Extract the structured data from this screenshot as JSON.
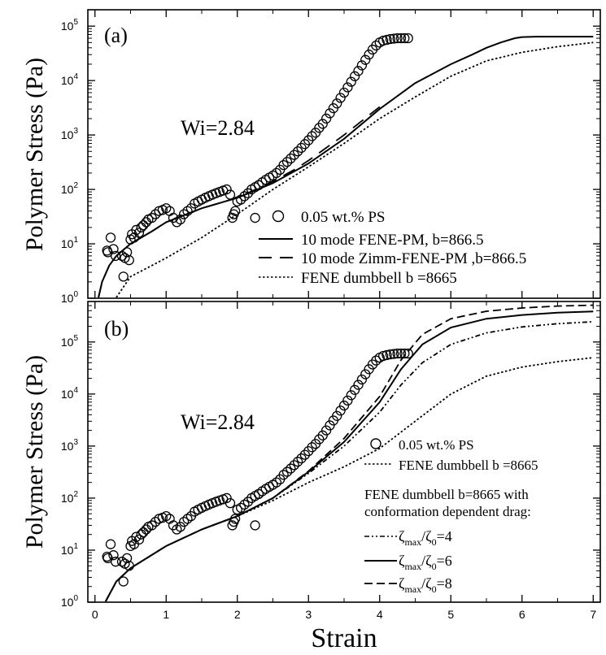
{
  "figure": {
    "ylabel": "Polymer Stress (Pa)",
    "xlabel": "Strain",
    "xticks": [
      "0",
      "1",
      "2",
      "3",
      "4",
      "5",
      "6",
      "7"
    ]
  },
  "chart_data": [
    {
      "type": "line",
      "panel_label": "(a)",
      "annotation": "Wi=2.84",
      "xlim": [
        -0.1,
        7.1
      ],
      "ylim": [
        1,
        200000
      ],
      "y_scale": "log",
      "yticks": [
        1,
        10,
        100,
        1000,
        10000,
        100000
      ],
      "ytick_labels": {
        "base": "10",
        "exps": [
          "0",
          "1",
          "2",
          "3",
          "4",
          "5"
        ]
      },
      "legend_position": "bottom-right",
      "series": [
        {
          "name": "0.05 wt.% PS",
          "kind": "markers",
          "marker": "open-circle",
          "x": [
            0.18,
            0.22,
            0.17,
            0.26,
            0.29,
            0.38,
            0.42,
            0.45,
            0.48,
            0.5,
            0.52,
            0.55,
            0.58,
            0.62,
            0.65,
            0.68,
            0.72,
            0.75,
            0.8,
            0.85,
            0.9,
            0.95,
            1.0,
            1.05,
            1.1,
            1.15,
            1.2,
            1.25,
            1.3,
            1.35,
            1.4,
            1.45,
            1.5,
            1.55,
            1.6,
            1.65,
            1.7,
            1.75,
            1.8,
            1.85,
            1.9,
            1.95,
            2.0,
            2.05,
            2.1,
            2.15,
            2.2,
            2.25,
            2.3,
            2.35,
            2.4,
            2.45,
            2.5,
            2.55,
            2.6,
            2.65,
            2.7,
            2.75,
            2.8,
            2.85,
            2.9,
            2.95,
            3.0,
            3.05,
            3.1,
            3.15,
            3.2,
            3.25,
            3.3,
            3.35,
            3.4,
            3.45,
            3.5,
            3.55,
            3.6,
            3.65,
            3.7,
            3.75,
            3.8,
            3.85,
            3.9,
            3.95,
            4.0,
            4.05,
            4.1,
            4.15,
            4.2,
            4.25,
            4.3,
            4.35,
            4.4,
            1.93,
            1.97,
            2.3,
            2.25,
            0.4
          ],
          "y": [
            7,
            13,
            7.5,
            8,
            6,
            6,
            5.5,
            7,
            5,
            12,
            15,
            13,
            18,
            16,
            20,
            22,
            25,
            28,
            30,
            35,
            40,
            42,
            45,
            40,
            30,
            25,
            28,
            35,
            40,
            45,
            55,
            60,
            65,
            70,
            75,
            80,
            85,
            90,
            95,
            100,
            80,
            35,
            60,
            65,
            75,
            85,
            100,
            110,
            120,
            135,
            150,
            165,
            180,
            200,
            230,
            280,
            320,
            370,
            430,
            500,
            580,
            680,
            800,
            950,
            1100,
            1350,
            1600,
            2000,
            2500,
            3100,
            3800,
            4800,
            6000,
            7500,
            9500,
            12000,
            15000,
            19000,
            24000,
            30000,
            37000,
            44000,
            50000,
            54000,
            56000,
            58000,
            59000,
            60000,
            60000,
            60000,
            60000,
            30,
            40,
            120,
            30,
            2.5
          ]
        },
        {
          "name": "10 mode FENE-PM, b=866.5",
          "kind": "line",
          "dash": "solid",
          "x": [
            0.05,
            0.1,
            0.2,
            0.3,
            0.5,
            0.8,
            1.0,
            1.5,
            2.0,
            2.5,
            3.0,
            3.5,
            4.0,
            4.5,
            5.0,
            5.3,
            5.5,
            5.7,
            5.9,
            6.0,
            6.2,
            6.5,
            7.0
          ],
          "y": [
            1,
            2,
            4,
            6,
            10,
            17,
            25,
            45,
            70,
            130,
            300,
            850,
            3000,
            9000,
            20000,
            30000,
            40000,
            50000,
            60000,
            63000,
            64000,
            64000,
            64000
          ]
        },
        {
          "name": "10 mode Zimm-FENE-PM ,b=866.5",
          "kind": "line",
          "dash": "long-dash",
          "x": [
            0.05,
            0.1,
            0.2,
            0.3,
            0.5,
            0.8,
            1.0,
            1.5,
            2.0,
            2.5,
            2.8,
            3.0,
            3.5,
            4.0
          ],
          "y": [
            1,
            2,
            4,
            6,
            10,
            17,
            25,
            45,
            70,
            140,
            230,
            340,
            1000,
            3300
          ]
        },
        {
          "name": "FENE dumbbell b =8665",
          "kind": "line",
          "dash": "dotted",
          "x": [
            0.3,
            0.5,
            0.8,
            1.0,
            1.5,
            2.0,
            2.5,
            3.0,
            3.5,
            4.0,
            4.5,
            5.0,
            5.5,
            6.0,
            6.5,
            7.0
          ],
          "y": [
            1,
            2.5,
            4,
            5.5,
            13,
            35,
            100,
            260,
            700,
            2000,
            5000,
            12000,
            23000,
            33000,
            42000,
            50000
          ]
        }
      ]
    },
    {
      "type": "line",
      "panel_label": "(b)",
      "annotation": "Wi=2.84",
      "xlim": [
        -0.1,
        7.1
      ],
      "ylim": [
        1,
        600000
      ],
      "y_scale": "log",
      "yticks": [
        1,
        10,
        100,
        1000,
        10000,
        100000
      ],
      "ytick_labels": {
        "base": "10",
        "exps": [
          "0",
          "1",
          "2",
          "3",
          "4",
          "5"
        ]
      },
      "legend_position": "right",
      "legend_note": [
        "FENE dumbbell b=8665 with",
        "conformation dependent drag:"
      ],
      "series": [
        {
          "name": "0.05 wt.% PS",
          "kind": "markers",
          "marker": "open-circle",
          "x": [
            0.18,
            0.22,
            0.17,
            0.26,
            0.29,
            0.38,
            0.42,
            0.45,
            0.48,
            0.5,
            0.52,
            0.55,
            0.58,
            0.62,
            0.65,
            0.68,
            0.72,
            0.75,
            0.8,
            0.85,
            0.9,
            0.95,
            1.0,
            1.05,
            1.1,
            1.15,
            1.2,
            1.25,
            1.3,
            1.35,
            1.4,
            1.45,
            1.5,
            1.55,
            1.6,
            1.65,
            1.7,
            1.75,
            1.8,
            1.85,
            1.9,
            1.95,
            2.0,
            2.05,
            2.1,
            2.15,
            2.2,
            2.25,
            2.3,
            2.35,
            2.4,
            2.45,
            2.5,
            2.55,
            2.6,
            2.65,
            2.7,
            2.75,
            2.8,
            2.85,
            2.9,
            2.95,
            3.0,
            3.05,
            3.1,
            3.15,
            3.2,
            3.25,
            3.3,
            3.35,
            3.4,
            3.45,
            3.5,
            3.55,
            3.6,
            3.65,
            3.7,
            3.75,
            3.8,
            3.85,
            3.9,
            3.95,
            4.0,
            4.05,
            4.1,
            4.15,
            4.2,
            4.25,
            4.3,
            4.35,
            4.4,
            1.93,
            1.97,
            2.3,
            2.25,
            0.4
          ],
          "y": [
            7,
            13,
            7.5,
            8,
            6,
            6,
            5.5,
            7,
            5,
            12,
            15,
            13,
            18,
            16,
            20,
            22,
            25,
            28,
            30,
            35,
            40,
            42,
            45,
            40,
            30,
            25,
            28,
            35,
            40,
            45,
            55,
            60,
            65,
            70,
            75,
            80,
            85,
            90,
            95,
            100,
            80,
            35,
            60,
            65,
            75,
            85,
            100,
            110,
            120,
            135,
            150,
            165,
            180,
            200,
            230,
            280,
            320,
            370,
            430,
            500,
            580,
            680,
            800,
            950,
            1100,
            1350,
            1600,
            2000,
            2500,
            3100,
            3800,
            4800,
            6000,
            7500,
            9500,
            12000,
            15000,
            19000,
            24000,
            30000,
            37000,
            44000,
            50000,
            54000,
            56000,
            58000,
            59000,
            60000,
            60000,
            60000,
            60000,
            30,
            40,
            120,
            30,
            2.5
          ]
        },
        {
          "name": "FENE dumbbell b =8665",
          "kind": "line",
          "dash": "dotted",
          "x": [
            0.15,
            0.3,
            0.5,
            1.0,
            1.5,
            2.0,
            2.5,
            3.0,
            3.5,
            4.0,
            4.5,
            5.0,
            5.5,
            6.0,
            6.5,
            7.0
          ],
          "y": [
            1,
            2.5,
            4.5,
            12,
            25,
            45,
            90,
            200,
            400,
            900,
            3000,
            10000,
            22000,
            33000,
            42000,
            50000
          ]
        },
        {
          "name": "ζmax/ζ0=4",
          "kind": "line",
          "dash": "dash-dot-dot",
          "x": [
            0.15,
            0.3,
            0.5,
            1.0,
            1.5,
            2.0,
            2.5,
            3.0,
            3.5,
            4.0,
            4.3,
            4.6,
            5.0,
            5.5,
            6.0,
            6.5,
            7.0
          ],
          "y": [
            1,
            2.5,
            4.5,
            12,
            25,
            45,
            100,
            300,
            1000,
            4500,
            15000,
            40000,
            90000,
            150000,
            195000,
            225000,
            245000
          ]
        },
        {
          "name": "ζmax/ζ0=6",
          "kind": "line",
          "dash": "solid",
          "x": [
            0.15,
            0.3,
            0.5,
            1.0,
            1.5,
            2.0,
            2.5,
            3.0,
            3.5,
            4.0,
            4.3,
            4.6,
            5.0,
            5.5,
            6.0,
            6.5,
            7.0
          ],
          "y": [
            1,
            2.5,
            4.5,
            12,
            25,
            45,
            100,
            320,
            1200,
            7000,
            30000,
            90000,
            190000,
            280000,
            330000,
            365000,
            385000
          ]
        },
        {
          "name": "ζmax/ζ0=8",
          "kind": "line",
          "dash": "dashed",
          "x": [
            0.15,
            0.3,
            0.5,
            1.0,
            1.5,
            2.0,
            2.5,
            3.0,
            3.5,
            4.0,
            4.3,
            4.6,
            5.0,
            5.5,
            6.0,
            6.5,
            7.0
          ],
          "y": [
            1,
            2.5,
            4.5,
            12,
            25,
            45,
            100,
            330,
            1400,
            9000,
            45000,
            140000,
            280000,
            390000,
            450000,
            490000,
            510000
          ]
        }
      ]
    }
  ]
}
